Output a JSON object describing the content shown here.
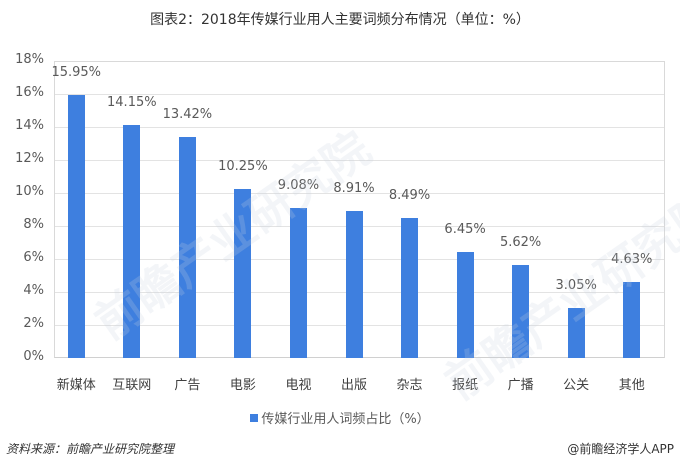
{
  "title": "图表2：2018年传媒行业用人主要词频分布情况（单位：%）",
  "chart_data": {
    "type": "bar",
    "title": "图表2：2018年传媒行业用人主要词频分布情况（单位：%）",
    "categories": [
      "新媒体",
      "互联网",
      "广告",
      "电影",
      "电视",
      "出版",
      "杂志",
      "报纸",
      "广播",
      "公关",
      "其他"
    ],
    "series": [
      {
        "name": "传媒行业用人词频占比（%）",
        "values": [
          15.95,
          14.15,
          13.42,
          10.25,
          9.08,
          8.91,
          8.49,
          6.45,
          5.62,
          3.05,
          4.63
        ],
        "color": "#3e7fdf"
      }
    ],
    "data_labels": [
      "15.95%",
      "14.15%",
      "13.42%",
      "10.25%",
      "9.08%",
      "8.91%",
      "8.49%",
      "6.45%",
      "5.62%",
      "3.05%",
      "4.63%"
    ],
    "xlabel": "",
    "ylabel": "",
    "ylim": [
      0,
      18
    ],
    "yticks": [
      "0%",
      "2%",
      "4%",
      "6%",
      "8%",
      "10%",
      "12%",
      "14%",
      "16%",
      "18%"
    ],
    "grid": true,
    "legend_position": "bottom"
  },
  "legend": {
    "label": "传媒行业用人词频占比（%）",
    "color": "#3e7fdf"
  },
  "footer": {
    "source": "资料来源：前瞻产业研究院整理",
    "credit": "@前瞻经济学人APP"
  },
  "watermark": "前瞻产业研究院"
}
